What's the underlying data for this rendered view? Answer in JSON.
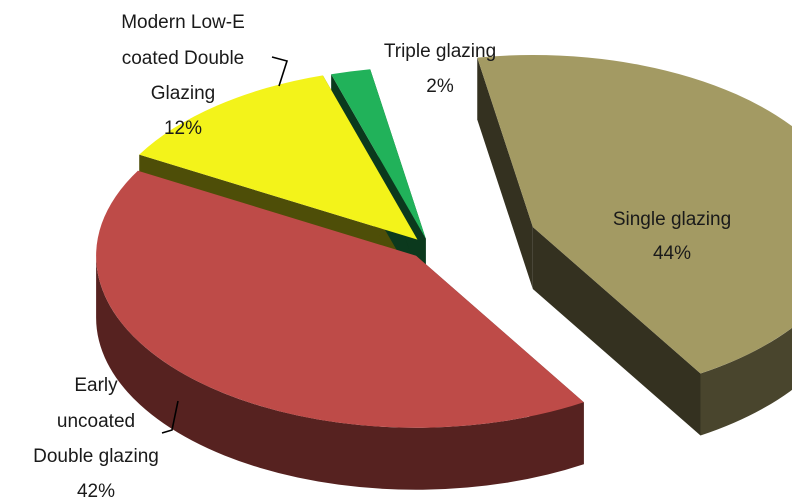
{
  "chart_data": {
    "type": "pie",
    "title": "",
    "exploded_3d": true,
    "legend": "none",
    "slices": [
      {
        "name": "Single glazing",
        "value": 44,
        "percent_label": "44%",
        "color": "#a39a63",
        "label_lines": [
          "Single glazing",
          "44%"
        ]
      },
      {
        "name": "Early uncoated Double glazing",
        "value": 42,
        "percent_label": "42%",
        "color": "#be4b48",
        "label_lines": [
          "Early",
          "uncoated",
          "Double glazing",
          "42%"
        ]
      },
      {
        "name": "Modern Low-E coated Double Glazing",
        "value": 12,
        "percent_label": "12%",
        "color": "#f3f31a",
        "label_lines": [
          "Modern Low-E",
          "coated Double",
          "Glazing",
          "12%"
        ]
      },
      {
        "name": "Triple glazing",
        "value": 2,
        "percent_label": "2%",
        "color": "#21b25a",
        "label_lines": [
          "Triple glazing",
          "2%"
        ]
      }
    ]
  }
}
